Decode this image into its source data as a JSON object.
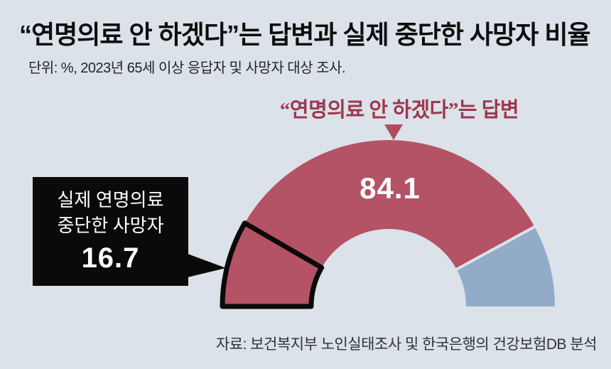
{
  "title": "“연명의료 안 하겠다”는 답변과 실제 중단한 사망자 비율",
  "subtitle": "단위: %, 2023년 65세 이상 응답자 및 사망자 대상 조사.",
  "source": "자료: 보건복지부 노인실태조사 및 한국은행의 건강보험DB 분석",
  "gauge_label": "“연명의료 안 하겠다”는 답변",
  "main_value": "84.1",
  "callout": {
    "line1": "실제 연명의료",
    "line2": "중단한 사망자",
    "value": "16.7"
  },
  "colors": {
    "background": "#dbe2e9",
    "answer_red": "#b45266",
    "remainder_blue": "#91abc9",
    "label_maroon": "#9d3850",
    "marker_red": "#ae4d62",
    "callout_black": "#0a0a0a",
    "outline_black": "#0a0a0a"
  },
  "chart_data": {
    "type": "gauge",
    "shape": "semicircle-donut",
    "unit": "%",
    "range": [
      0,
      100
    ],
    "title": "“연명의료 안 하겠다”는 답변과 실제 중단한 사망자 비율",
    "subtitle": "단위: %, 2023년 65세 이상 응답자 및 사망자 대상 조사.",
    "source": "자료: 보건복지부 노인실태조사 및 한국은행의 건강보험DB 분석",
    "segments": [
      {
        "label": "“연명의료 안 하겠다”는 답변",
        "value": 84.1,
        "color": "#b45266"
      },
      {
        "label": "",
        "value": 15.9,
        "color": "#91abc9"
      }
    ],
    "overlay_segment": {
      "label": "실제 연명의료 중단한 사망자",
      "value": 16.7,
      "color": "#b45266",
      "outline": "#0a0a0a"
    }
  }
}
